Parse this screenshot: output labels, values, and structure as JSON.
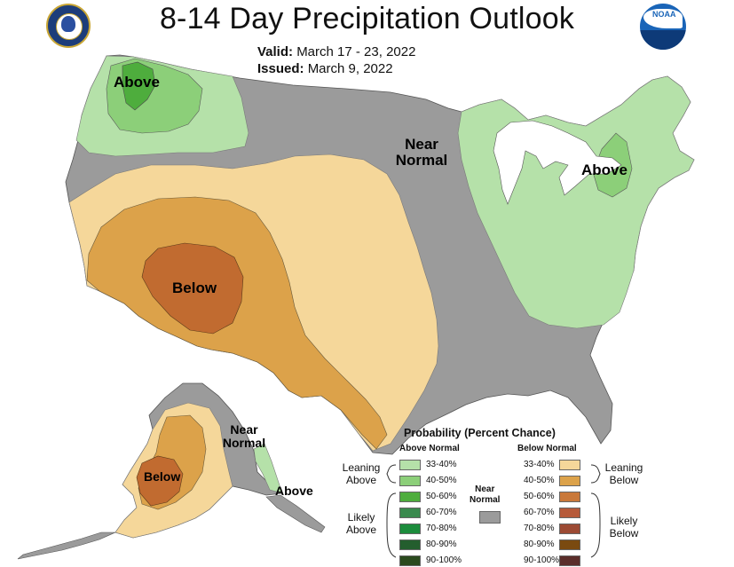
{
  "title": "8-14 Day Precipitation Outlook",
  "valid_label": "Valid:",
  "valid_value": "March 17 - 23, 2022",
  "issued_label": "Issued:",
  "issued_value": "March 9, 2022",
  "logos": {
    "left": "department-of-commerce-seal",
    "right": "noaa-logo",
    "right_text": "NOAA"
  },
  "map_labels": {
    "nw_above": "Above",
    "central_near": "Near",
    "central_normal": "Normal",
    "ne_above": "Above",
    "sw_below": "Below",
    "ak_near": "Near",
    "ak_normal": "Normal",
    "ak_below": "Below",
    "ak_se_above": "Above"
  },
  "colors": {
    "near_normal": "#9b9b9b",
    "above_33_40": "#b5e1a9",
    "above_40_50": "#8ccf79",
    "above_50_60": "#4ead3d",
    "below_33_40": "#f5d79a",
    "below_40_50": "#dca24a",
    "below_50_60": "#c16b30"
  },
  "legend": {
    "title": "Probability (Percent Chance)",
    "above_header": "Above Normal",
    "below_header": "Below Normal",
    "near_normal_line1": "Near",
    "near_normal_line2": "Normal",
    "leaning_above_1": "Leaning",
    "leaning_above_2": "Above",
    "likely_above_1": "Likely",
    "likely_above_2": "Above",
    "leaning_below_1": "Leaning",
    "leaning_below_2": "Below",
    "likely_below_1": "Likely",
    "likely_below_2": "Below",
    "above_ranges": [
      "33-40%",
      "40-50%",
      "50-60%",
      "60-70%",
      "70-80%",
      "80-90%",
      "90-100%"
    ],
    "above_colors": [
      "#b5e1a9",
      "#8ccf79",
      "#4ead3d",
      "#3a8a4e",
      "#1c8c3c",
      "#245e2e",
      "#2b4a1e"
    ],
    "below_ranges": [
      "33-40%",
      "40-50%",
      "50-60%",
      "60-70%",
      "70-80%",
      "80-90%",
      "90-100%"
    ],
    "below_colors": [
      "#f5d79a",
      "#dca24a",
      "#c9783a",
      "#b65a3a",
      "#9c4a34",
      "#7a4a10",
      "#5a2d2a"
    ]
  }
}
